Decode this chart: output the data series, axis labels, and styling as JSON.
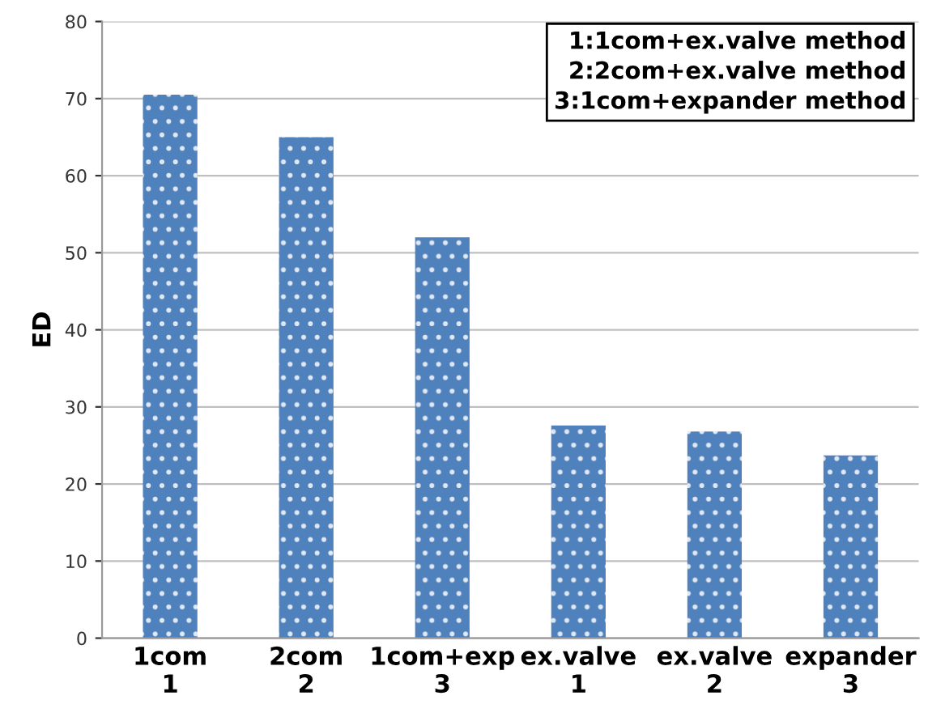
{
  "chart_data": {
    "type": "bar",
    "ylabel": "ED",
    "categories": [
      "1com\n1",
      "2com\n2",
      "1com+exp\n3",
      "ex.valve\n1",
      "ex.valve\n2",
      "expander\n3"
    ],
    "values": [
      70.5,
      65,
      52,
      27.6,
      26.8,
      23.7
    ],
    "color": "#4f81bd",
    "ylim": [
      0,
      80
    ],
    "yticks": [
      0,
      10,
      20,
      30,
      40,
      50,
      60,
      70,
      80
    ],
    "grid": "y",
    "annotations": [
      "1:1com+ex.valve method",
      "2:2com+ex.valve method",
      "3:1com+expander method"
    ]
  }
}
